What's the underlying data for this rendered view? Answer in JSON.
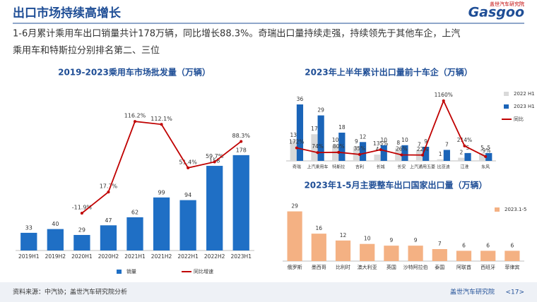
{
  "header": {
    "title": "出口市场持续高增长",
    "logo": "Gasgoo",
    "logo_sub": "盖世汽车研究院",
    "subtitle_lines": [
      "1-6月累计乘用车出口销量共计178万辆，同比增长88.3%。奇瑞出口量持续走强，持续领先于其他车企，上汽",
      "乘用车和特斯拉分别排名第二、三位"
    ]
  },
  "chart_data": [
    {
      "type": "bar",
      "title": "2019-2023乘用车市场批发量（万辆）",
      "categories": [
        "2019H1",
        "2019H2",
        "2020H1",
        "2020H2",
        "2021H1",
        "2021H2",
        "2022H1",
        "2022H2",
        "2023H1"
      ],
      "ylim": [
        0,
        270
      ],
      "y2lim": [
        -64,
        138
      ],
      "legend": "bottom",
      "series": [
        {
          "name": "销量",
          "type": "bar",
          "color": "#1f6fc5",
          "values": [
            33,
            40,
            29,
            47,
            62,
            99,
            94,
            158,
            178
          ]
        },
        {
          "name": "同比增速",
          "type": "line",
          "axis": "y2",
          "color": "#c00000",
          "values": [
            null,
            null,
            -11.9,
            17.7,
            116.2,
            112.1,
            51.4,
            59.7,
            88.3
          ],
          "value_labels": [
            null,
            null,
            "-11.9%",
            "17.7%",
            "116.2%",
            "112.1%",
            "51.4%",
            "59.7%",
            "88.3%"
          ]
        }
      ]
    },
    {
      "type": "bar",
      "title": "2023年上半年累计出口量前十车企（万辆）",
      "categories": [
        "奇瑞",
        "上汽乘用车",
        "特斯拉",
        "吉利",
        "长城",
        "长安",
        "上汽通用五菱",
        "比亚迪",
        "江淮",
        "东风"
      ],
      "ylim": [
        0,
        45
      ],
      "y2lim": [
        -100,
        1380
      ],
      "legend": "right",
      "series": [
        {
          "name": "2022 H1",
          "type": "bar",
          "color": "#d9d9d9",
          "values": [
            13,
            17,
            10,
            9,
            4,
            8,
            7,
            1,
            2,
            5
          ]
        },
        {
          "name": "2023 H1",
          "type": "bar",
          "color": "#1a64b8",
          "values": [
            36,
            29,
            18,
            12,
            10,
            10,
            9,
            7,
            5,
            5
          ]
        },
        {
          "name": "同比",
          "type": "line",
          "axis": "y2",
          "color": "#c00000",
          "values": [
            172,
            74,
            80,
            35,
            135,
            26,
            22,
            1160,
            214,
            -9
          ],
          "value_labels": [
            "172%",
            "74%",
            "80%",
            "35%",
            "135%",
            "26%",
            "22%",
            "1160%",
            "214%",
            "-9%"
          ]
        }
      ]
    },
    {
      "type": "bar",
      "title": "2023年1-5月主要整车出口国家出口量（万辆）",
      "categories": [
        "俄罗斯",
        "墨西哥",
        "比利时",
        "澳大利亚",
        "英国",
        "沙特阿拉伯",
        "泰国",
        "阿联酋",
        "西班牙",
        "菲律宾"
      ],
      "ylim": [
        0,
        35
      ],
      "legend": "top-right",
      "series": [
        {
          "name": "2023.1-5",
          "type": "bar",
          "color": "#f4b183",
          "values": [
            29,
            16,
            12,
            10,
            9,
            9,
            7,
            6,
            6,
            6
          ]
        }
      ]
    }
  ],
  "footer": {
    "source": "资料来源：中汽协；盖世汽车研究院分析",
    "brand": "盖世汽车研究院",
    "page": "<17>"
  }
}
